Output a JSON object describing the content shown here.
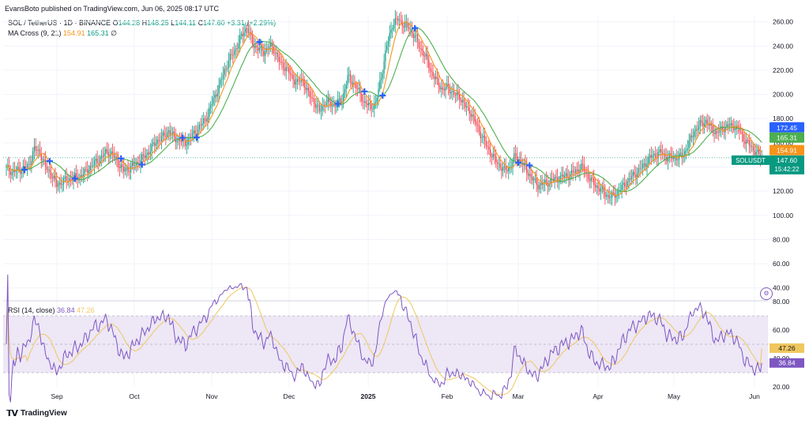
{
  "header": {
    "publisher": "EvansBoto published on TradingView.com, Jun 06, 2025 08:17 UTC",
    "symbol": "SOL / TetherUS · 1D · BINANCE",
    "o_label": "O",
    "o_value": "144.28",
    "h_label": "H",
    "h_value": "148.25",
    "l_label": "L",
    "l_value": "144.11",
    "c_label": "C",
    "c_value": "147.60",
    "change": "+3.31 (+2.29%)",
    "ma_label": "MA Cross (9, 21)",
    "ma_fast": "154.91",
    "ma_slow": "165.31",
    "ma_extra": "∅",
    "rsi_label": "RSI (14, close)",
    "rsi_value": "36.84",
    "rsi_ma_value": "47.26"
  },
  "price_badges": {
    "b1": "172.45",
    "b2": "165.31",
    "b3": "154.91",
    "symbol_tag": "SOLUSDT",
    "last_price": "147.60",
    "countdown": "15:42:22"
  },
  "rsi_badges": {
    "rsi_ma": "47.26",
    "rsi": "36.84"
  },
  "footer": {
    "brand": "TradingView",
    "gear_icon": "gear-icon"
  },
  "colors": {
    "up": "#089981",
    "down": "#f23645",
    "ma_fast": "#f7931a",
    "ma_slow": "#4caf50",
    "rsi": "#7e57c2",
    "rsi_ma": "#f0c75e",
    "rsi_band": "#ede7f6",
    "cross": "#2962ff"
  },
  "chart_data": [
    {
      "type": "candlestick",
      "title": "SOL / TetherUS · 1D · BINANCE",
      "ylim": [
        30,
        265
      ],
      "y_ticks": [
        40,
        60,
        80,
        100,
        120,
        140,
        160,
        180,
        200,
        220,
        240,
        260
      ],
      "y_tick_labels": [
        "40.00",
        "60.00",
        "80.00",
        "100.00",
        "120.00",
        "140.00",
        "160.00",
        "180.00",
        "200.00",
        "220.00",
        "240.00",
        "260.00"
      ],
      "x_labels": [
        "Sep",
        "Oct",
        "Nov",
        "Dec",
        "2025",
        "Feb",
        "Mar",
        "Apr",
        "May",
        "Jun"
      ],
      "close_anchors": [
        [
          0,
          139
        ],
        [
          4,
          136
        ],
        [
          8,
          137
        ],
        [
          12,
          139
        ],
        [
          16,
          141
        ],
        [
          20,
          155
        ],
        [
          24,
          152
        ],
        [
          28,
          140
        ],
        [
          32,
          134
        ],
        [
          36,
          125
        ],
        [
          40,
          128
        ],
        [
          44,
          130
        ],
        [
          48,
          131
        ],
        [
          52,
          132
        ],
        [
          56,
          135
        ],
        [
          60,
          140
        ],
        [
          64,
          144
        ],
        [
          68,
          148
        ],
        [
          72,
          153
        ],
        [
          76,
          150
        ],
        [
          80,
          143
        ],
        [
          84,
          137
        ],
        [
          88,
          139
        ],
        [
          92,
          142
        ],
        [
          96,
          146
        ],
        [
          100,
          150
        ],
        [
          104,
          156
        ],
        [
          108,
          162
        ],
        [
          112,
          165
        ],
        [
          116,
          170
        ],
        [
          120,
          164
        ],
        [
          124,
          162
        ],
        [
          128,
          160
        ],
        [
          132,
          165
        ],
        [
          136,
          170
        ],
        [
          140,
          176
        ],
        [
          144,
          183
        ],
        [
          148,
          196
        ],
        [
          152,
          206
        ],
        [
          156,
          220
        ],
        [
          160,
          230
        ],
        [
          164,
          238
        ],
        [
          168,
          248
        ],
        [
          172,
          256
        ],
        [
          176,
          242
        ],
        [
          180,
          238
        ],
        [
          184,
          235
        ],
        [
          188,
          240
        ],
        [
          192,
          236
        ],
        [
          196,
          225
        ],
        [
          200,
          222
        ],
        [
          204,
          214
        ],
        [
          208,
          210
        ],
        [
          212,
          212
        ],
        [
          216,
          200
        ],
        [
          220,
          194
        ],
        [
          224,
          186
        ],
        [
          228,
          194
        ],
        [
          232,
          192
        ],
        [
          236,
          192
        ],
        [
          240,
          196
        ],
        [
          244,
          214
        ],
        [
          248,
          210
        ],
        [
          252,
          202
        ],
        [
          256,
          193
        ],
        [
          260,
          190
        ],
        [
          264,
          192
        ],
        [
          268,
          215
        ],
        [
          272,
          240
        ],
        [
          276,
          258
        ],
        [
          280,
          262
        ],
        [
          284,
          258
        ],
        [
          288,
          255
        ],
        [
          292,
          248
        ],
        [
          296,
          238
        ],
        [
          300,
          230
        ],
        [
          304,
          218
        ],
        [
          308,
          210
        ],
        [
          312,
          204
        ],
        [
          316,
          206
        ],
        [
          320,
          200
        ],
        [
          324,
          198
        ],
        [
          328,
          190
        ],
        [
          332,
          185
        ],
        [
          336,
          175
        ],
        [
          340,
          165
        ],
        [
          344,
          156
        ],
        [
          348,
          148
        ],
        [
          352,
          142
        ],
        [
          356,
          137
        ],
        [
          360,
          140
        ],
        [
          364,
          150
        ],
        [
          368,
          144
        ],
        [
          372,
          137
        ],
        [
          376,
          130
        ],
        [
          380,
          125
        ],
        [
          384,
          126
        ],
        [
          388,
          128
        ],
        [
          392,
          130
        ],
        [
          396,
          131
        ],
        [
          400,
          133
        ],
        [
          404,
          134
        ],
        [
          408,
          138
        ],
        [
          412,
          140
        ],
        [
          416,
          132
        ],
        [
          420,
          126
        ],
        [
          424,
          122
        ],
        [
          428,
          118
        ],
        [
          432,
          115
        ],
        [
          436,
          118
        ],
        [
          440,
          123
        ],
        [
          444,
          128
        ],
        [
          448,
          133
        ],
        [
          452,
          137
        ],
        [
          456,
          142
        ],
        [
          460,
          148
        ],
        [
          464,
          150
        ],
        [
          468,
          152
        ],
        [
          472,
          148
        ],
        [
          476,
          148
        ],
        [
          480,
          148
        ],
        [
          484,
          150
        ],
        [
          488,
          160
        ],
        [
          492,
          170
        ],
        [
          496,
          175
        ],
        [
          500,
          178
        ],
        [
          504,
          172
        ],
        [
          508,
          168
        ],
        [
          512,
          172
        ],
        [
          516,
          174
        ],
        [
          520,
          174
        ],
        [
          524,
          170
        ],
        [
          528,
          162
        ],
        [
          532,
          157
        ],
        [
          536,
          152
        ],
        [
          540,
          148
        ]
      ],
      "series": [
        {
          "name": "MA Cross (9, 21) fast",
          "last": 154.91
        },
        {
          "name": "MA Cross (9, 21) slow",
          "last": 165.31
        }
      ],
      "last": {
        "open": 144.28,
        "high": 148.25,
        "low": 144.11,
        "close": 147.6,
        "change": 3.31,
        "change_pct": 2.29
      },
      "markers": [
        "buy",
        "sell",
        "buy",
        "buy",
        "sell",
        "buy",
        "buy",
        "buy",
        "sell",
        "buy",
        "buy",
        "sell",
        "buy",
        "sell"
      ]
    },
    {
      "type": "line",
      "title": "RSI (14, close)",
      "ylim": [
        20,
        80
      ],
      "y_ticks": [
        20,
        40,
        60,
        80
      ],
      "y_tick_labels": [
        "20.00",
        "40.00",
        "60.00",
        "80.00"
      ],
      "band": [
        30,
        70
      ],
      "mid": 50,
      "series": [
        {
          "name": "RSI",
          "last": 36.84
        },
        {
          "name": "RSI MA",
          "last": 47.26
        }
      ]
    }
  ]
}
